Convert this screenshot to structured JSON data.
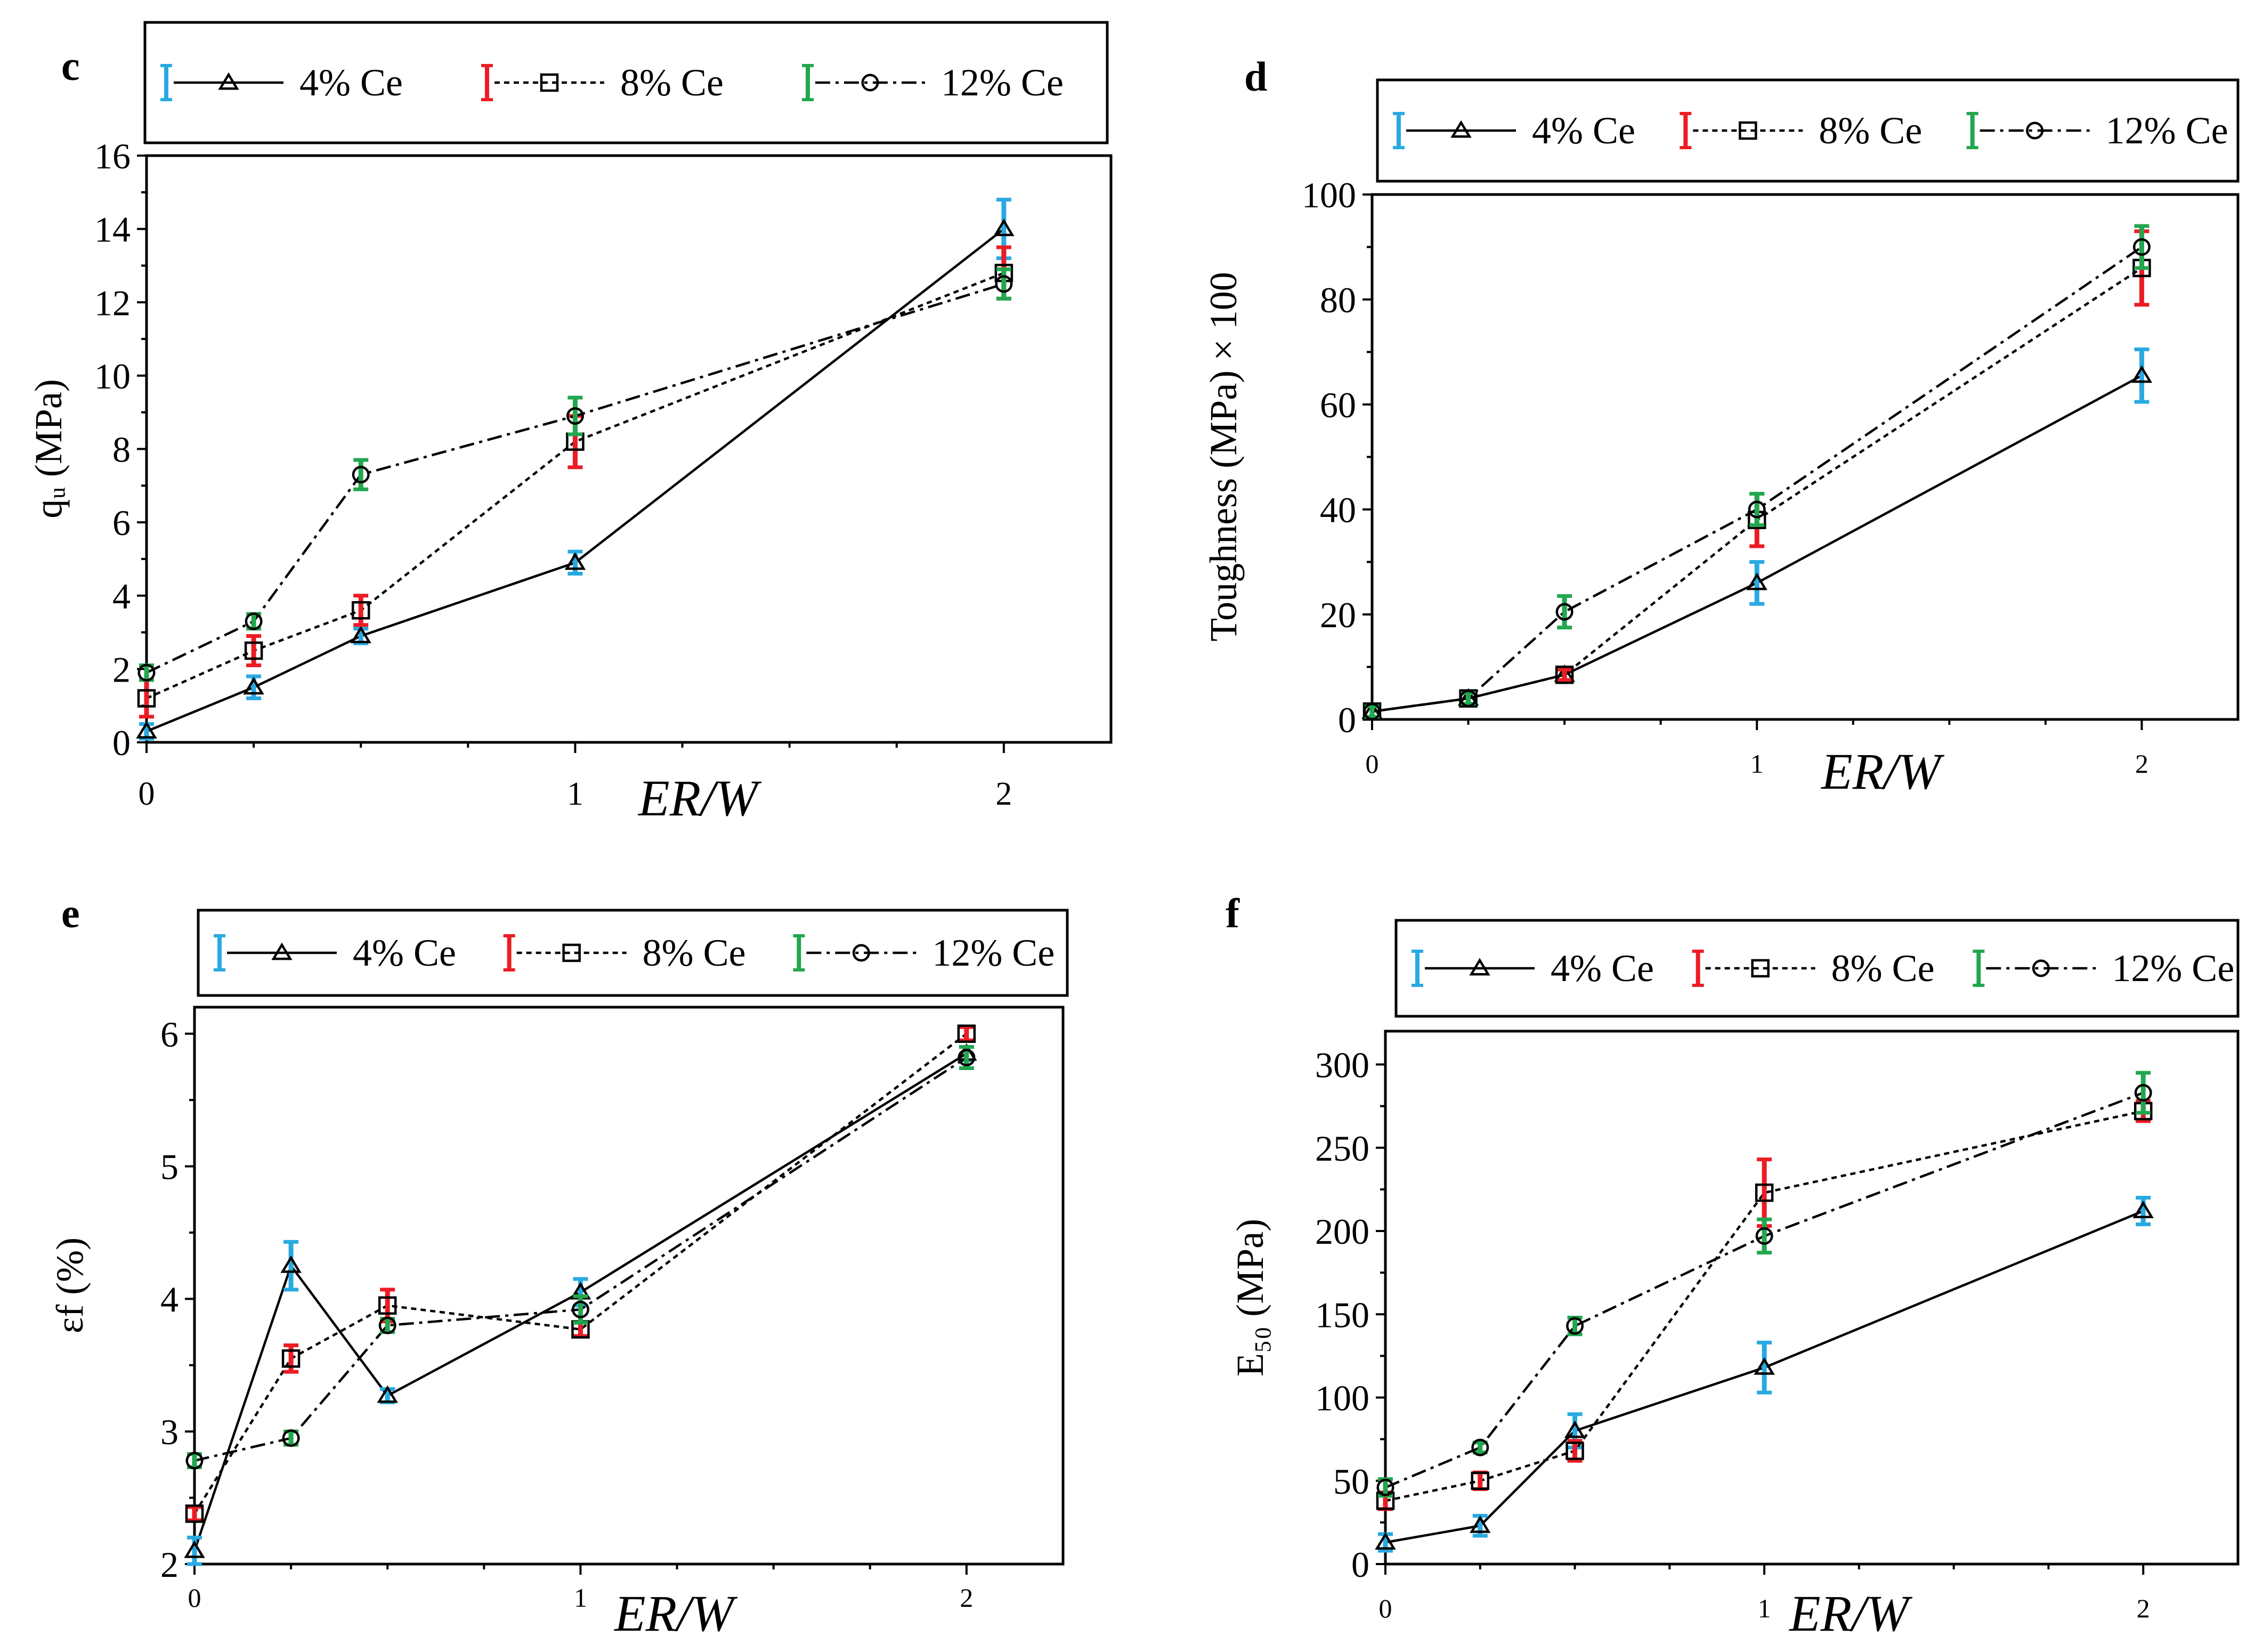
{
  "colors": {
    "series_4": "#29a9e1",
    "series_8": "#ec1c24",
    "series_12": "#22a74f"
  },
  "chart_data": [
    {
      "panel": "c",
      "type": "line",
      "xlabel": "ER/W",
      "ylabel": "qᵤ (MPa)",
      "x_ticks": [
        "0",
        "1",
        "2"
      ],
      "y_ticks": [
        "0",
        "2",
        "4",
        "6",
        "8",
        "10",
        "12",
        "14",
        "16"
      ],
      "xlim": [
        0,
        2.25
      ],
      "ylim": [
        0,
        16
      ],
      "legend": [
        "4% Ce",
        "8% Ce",
        "12% Ce"
      ],
      "series": [
        {
          "name": "4% Ce",
          "marker": "triangle",
          "dash": "solid",
          "x": [
            0,
            0.25,
            0.5,
            1,
            2
          ],
          "y": [
            0.3,
            1.5,
            2.9,
            4.9,
            14.0
          ],
          "err": [
            0.2,
            0.3,
            0.2,
            0.3,
            0.8
          ]
        },
        {
          "name": "8% Ce",
          "marker": "square",
          "dash": "dotted",
          "x": [
            0,
            0.25,
            0.5,
            1,
            2
          ],
          "y": [
            1.2,
            2.5,
            3.6,
            8.2,
            12.8
          ],
          "err": [
            0.5,
            0.4,
            0.4,
            0.7,
            0.7
          ]
        },
        {
          "name": "12% Ce",
          "marker": "circle",
          "dash": "dashdot",
          "x": [
            0,
            0.25,
            0.5,
            1,
            2
          ],
          "y": [
            1.9,
            3.3,
            7.3,
            8.9,
            12.5
          ],
          "err": [
            0.2,
            0.2,
            0.4,
            0.5,
            0.4
          ]
        }
      ]
    },
    {
      "panel": "d",
      "type": "line",
      "xlabel": "ER/W",
      "ylabel": "Toughness (MPa) × 100",
      "x_ticks": [
        "0",
        "1",
        "2"
      ],
      "y_ticks": [
        "0",
        "20",
        "40",
        "60",
        "80",
        "100"
      ],
      "xlim": [
        0,
        2.25
      ],
      "ylim": [
        0,
        100
      ],
      "legend": [
        "4% Ce",
        "8% Ce",
        "12% Ce"
      ],
      "series": [
        {
          "name": "4% Ce",
          "marker": "triangle",
          "dash": "solid",
          "x": [
            0,
            0.25,
            0.5,
            1,
            2
          ],
          "y": [
            1.5,
            4,
            8.5,
            26,
            65.5
          ],
          "err": [
            1,
            1,
            1,
            4,
            5
          ]
        },
        {
          "name": "8% Ce",
          "marker": "square",
          "dash": "dotted",
          "x": [
            0,
            0.25,
            0.5,
            1,
            2
          ],
          "y": [
            1.5,
            4,
            8.5,
            38,
            86
          ],
          "err": [
            1,
            1,
            1,
            5,
            7
          ]
        },
        {
          "name": "12% Ce",
          "marker": "circle",
          "dash": "dashdot",
          "x": [
            0,
            0.25,
            0.5,
            1,
            2
          ],
          "y": [
            1.5,
            4,
            20.5,
            40,
            90
          ],
          "err": [
            1,
            1,
            3,
            3,
            4
          ]
        }
      ]
    },
    {
      "panel": "e",
      "type": "line",
      "xlabel": "ER/W",
      "ylabel": "εf (%)",
      "x_ticks": [
        "0",
        "1",
        "2"
      ],
      "y_ticks": [
        "2",
        "3",
        "4",
        "5",
        "6"
      ],
      "xlim": [
        0,
        2.25
      ],
      "ylim": [
        2,
        6.2
      ],
      "legend": [
        "4% Ce",
        "8% Ce",
        "12% Ce"
      ],
      "series": [
        {
          "name": "4% Ce",
          "marker": "triangle",
          "dash": "solid",
          "x": [
            0,
            0.25,
            0.5,
            1,
            2
          ],
          "y": [
            2.1,
            4.25,
            3.27,
            4.05,
            5.85
          ],
          "err": [
            0.1,
            0.18,
            0.05,
            0.1,
            0.05
          ]
        },
        {
          "name": "8% Ce",
          "marker": "square",
          "dash": "dotted",
          "x": [
            0,
            0.25,
            0.5,
            1,
            2
          ],
          "y": [
            2.38,
            3.55,
            3.95,
            3.77,
            6.0
          ],
          "err": [
            0.05,
            0.1,
            0.12,
            0.05,
            0.05
          ]
        },
        {
          "name": "12% Ce",
          "marker": "circle",
          "dash": "dashdot",
          "x": [
            0,
            0.25,
            0.5,
            1,
            2
          ],
          "y": [
            2.78,
            2.95,
            3.8,
            3.92,
            5.82
          ],
          "err": [
            0.05,
            0.05,
            0.05,
            0.1,
            0.08
          ]
        }
      ]
    },
    {
      "panel": "f",
      "type": "line",
      "xlabel": "ER/W",
      "ylabel": "E₅₀ (MPa)",
      "x_ticks": [
        "0",
        "1",
        "2"
      ],
      "y_ticks": [
        "0",
        "50",
        "100",
        "150",
        "200",
        "250",
        "300"
      ],
      "xlim": [
        0,
        2.25
      ],
      "ylim": [
        0,
        320
      ],
      "legend": [
        "4% Ce",
        "8% Ce",
        "12% Ce"
      ],
      "series": [
        {
          "name": "4% Ce",
          "marker": "triangle",
          "dash": "solid",
          "x": [
            0,
            0.25,
            0.5,
            1,
            2
          ],
          "y": [
            13,
            23,
            80,
            118,
            212
          ],
          "err": [
            5,
            6,
            10,
            15,
            8
          ]
        },
        {
          "name": "8% Ce",
          "marker": "square",
          "dash": "dotted",
          "x": [
            0,
            0.25,
            0.5,
            1,
            2
          ],
          "y": [
            38,
            50,
            68,
            223,
            272
          ],
          "err": [
            5,
            5,
            6,
            20,
            6
          ]
        },
        {
          "name": "12% Ce",
          "marker": "circle",
          "dash": "dashdot",
          "x": [
            0,
            0.25,
            0.5,
            1,
            2
          ],
          "y": [
            46,
            70,
            143,
            197,
            283
          ],
          "err": [
            5,
            3,
            5,
            10,
            12
          ]
        }
      ]
    }
  ]
}
